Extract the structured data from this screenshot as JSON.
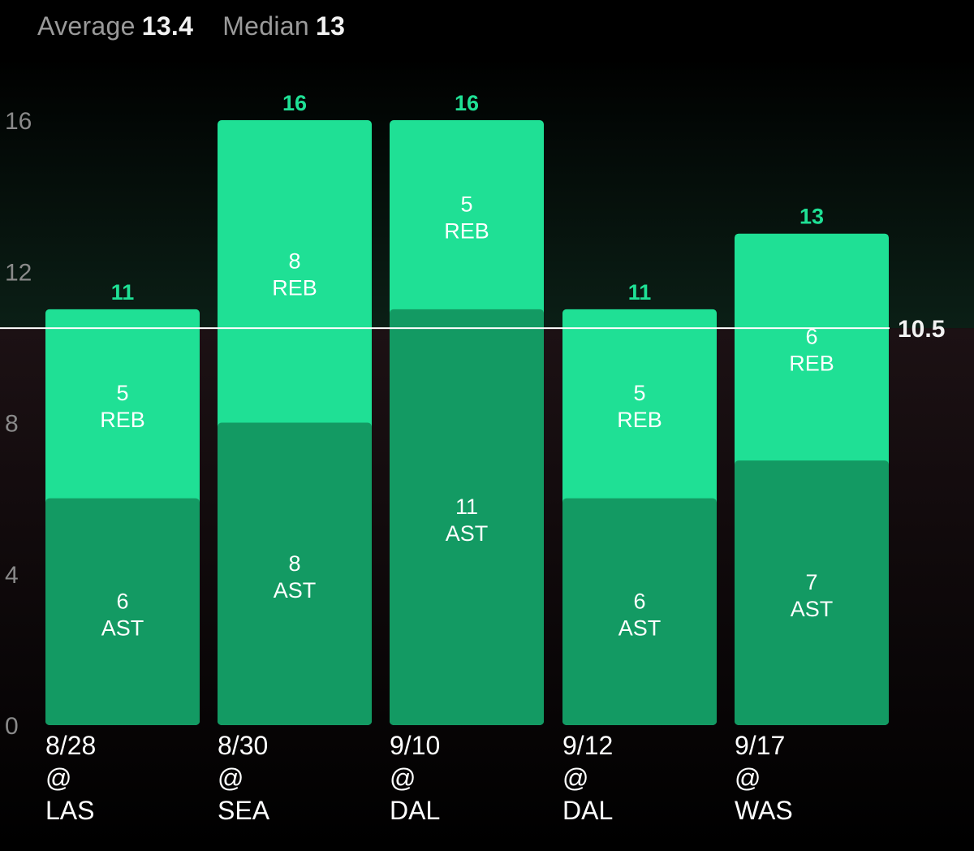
{
  "summary": {
    "average_label": "Average",
    "average_value": "13.4",
    "median_label": "Median",
    "median_value": "13"
  },
  "chart_data": {
    "type": "bar",
    "stacked": true,
    "categories": [
      {
        "date": "8/28",
        "at": "@",
        "opp": "LAS"
      },
      {
        "date": "8/30",
        "at": "@",
        "opp": "SEA"
      },
      {
        "date": "9/10",
        "at": "@",
        "opp": "DAL"
      },
      {
        "date": "9/12",
        "at": "@",
        "opp": "DAL"
      },
      {
        "date": "9/17",
        "at": "@",
        "opp": "WAS"
      }
    ],
    "series": [
      {
        "name": "AST",
        "values": [
          6,
          8,
          11,
          6,
          7
        ],
        "color": "#139a63"
      },
      {
        "name": "REB",
        "values": [
          5,
          8,
          5,
          5,
          6
        ],
        "color": "#1fe095"
      }
    ],
    "totals": [
      11,
      16,
      16,
      11,
      13
    ],
    "yticks": [
      0,
      4,
      8,
      12,
      16
    ],
    "ylim": [
      0,
      16
    ],
    "threshold": 10.5,
    "threshold_label": "10.5",
    "colors": {
      "total_label": "#1fe095",
      "above_bg": "#0b1f16",
      "below_bg": "#1c1114",
      "tick": "#8a8a8a",
      "threshold_line": "#ffffff"
    }
  }
}
